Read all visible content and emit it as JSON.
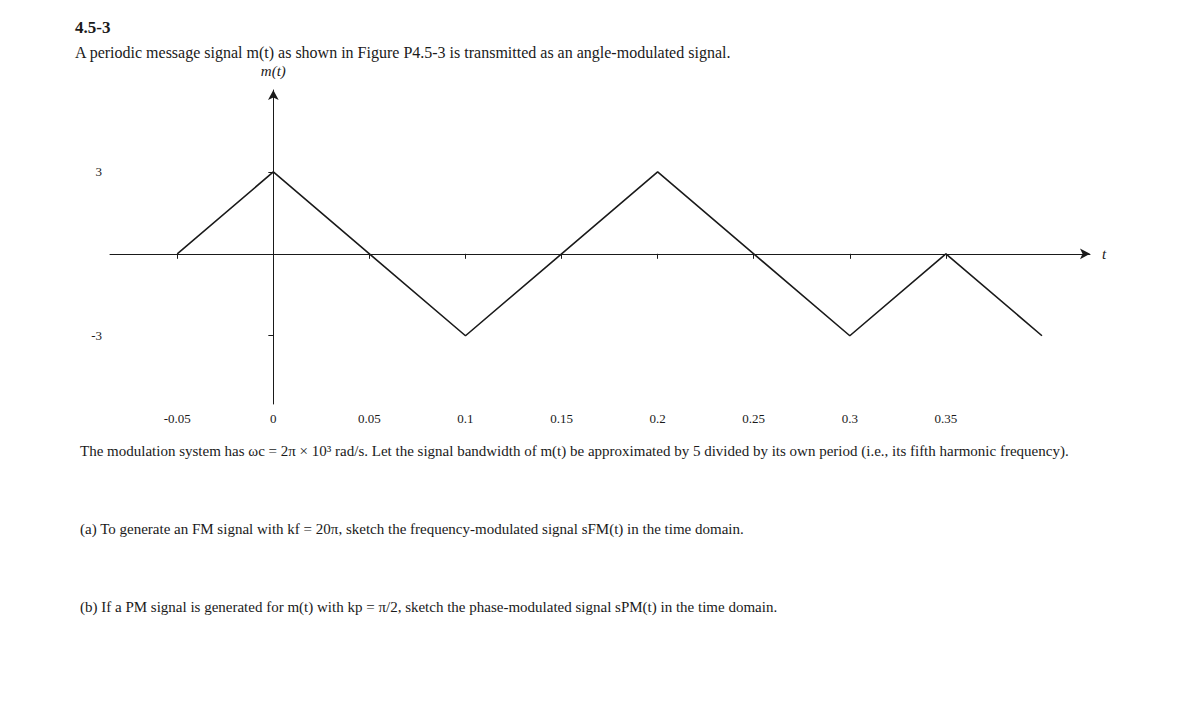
{
  "chart_data": {
    "type": "line",
    "title": "4.5-3",
    "subtitle": "A periodic message signal m(t) as shown in Figure P4.5-3 is transmitted as an angle-modulated signal.",
    "x_label": "t",
    "y_label": "m(t)",
    "x": [
      -0.05,
      0.0,
      0.05,
      0.1,
      0.15,
      0.2,
      0.25,
      0.3,
      0.35,
      0.4
    ],
    "values": [
      0,
      3,
      0,
      -3,
      0,
      3,
      0,
      -3,
      0,
      -3
    ],
    "color": "#1a1a1a",
    "xlim": [
      -0.085,
      0.425
    ],
    "xticks": [
      -0.05,
      0,
      0.05,
      0.1,
      0.15,
      0.2,
      0.25,
      0.3,
      0.35
    ],
    "ylim": [
      -5.5,
      6.0
    ],
    "yticks": [
      -3,
      3
    ],
    "grid": false,
    "annotations": [
      "The modulation system has ωc = 2π × 10³ rad/s. Let the signal bandwidth of m(t) be approximated by 5 divided by its own period (i.e., its fifth harmonic frequency).",
      "(a) To generate an FM signal with kf = 20π, sketch the frequency-modulated signal sFM(t) in the time domain.",
      "(b) If a PM signal is generated for m(t) with kp = π/2, sketch the phase-modulated signal sPM(t) in the time domain."
    ]
  }
}
